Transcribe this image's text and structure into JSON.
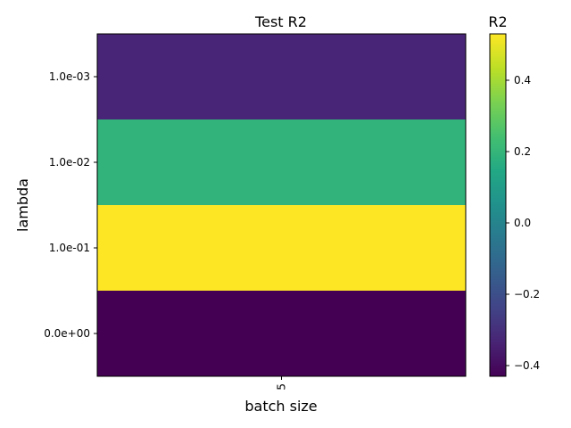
{
  "chart_data": {
    "type": "heatmap",
    "title": "Test R2",
    "xlabel": "batch size",
    "ylabel": "lambda",
    "colorbar_label": "R2",
    "x_categories": [
      "5"
    ],
    "y_categories": [
      "1.0e-03",
      "1.0e-02",
      "1.0e-01",
      "0.0e+00"
    ],
    "values": [
      [
        -0.33
      ],
      [
        0.19
      ],
      [
        0.53
      ],
      [
        -0.43
      ]
    ],
    "colormap": "viridis",
    "color_range": [
      -0.43,
      0.53
    ],
    "colorbar_ticks": [
      {
        "value": 0.4,
        "label": "0.4"
      },
      {
        "value": 0.2,
        "label": "0.2"
      },
      {
        "value": 0.0,
        "label": "0.0"
      },
      {
        "value": -0.2,
        "label": "−0.2"
      },
      {
        "value": -0.4,
        "label": "−0.4"
      }
    ],
    "grid": false
  }
}
